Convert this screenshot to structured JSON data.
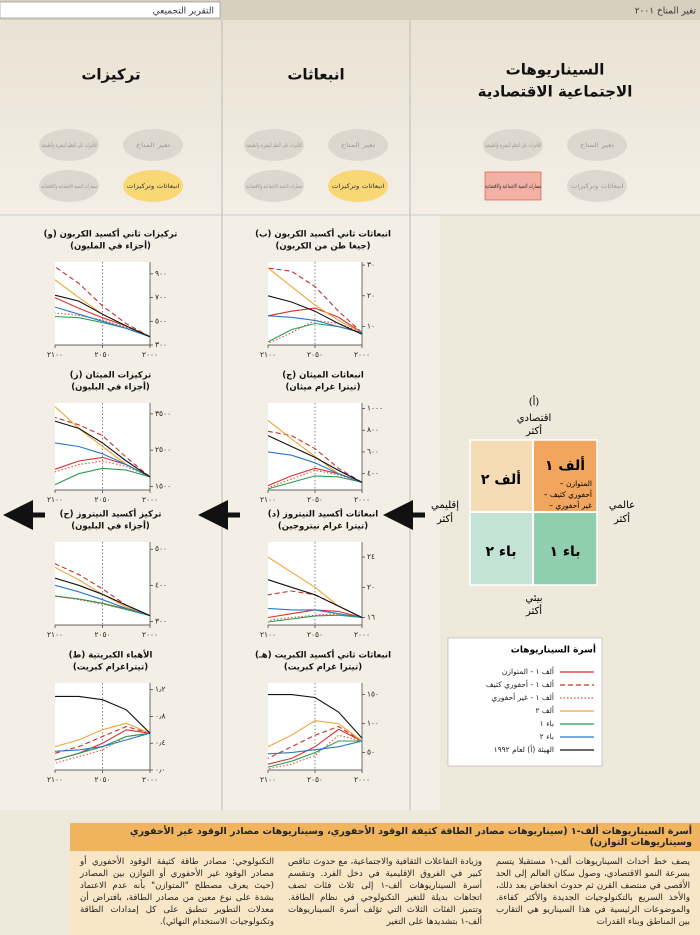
{
  "header": {
    "report_title": "تغير المناخ ٢٠٠١",
    "section": "التقرير التجميعي"
  },
  "columns": [
    {
      "title": [
        "السيناريوهات",
        "الاجتماعية الاقتصادية"
      ]
    },
    {
      "title": [
        "انبعاثات"
      ]
    },
    {
      "title": [
        "تركيزات"
      ]
    }
  ],
  "cycle_labels": [
    "تغير المناخ",
    "التأثيرات على النظم البشرية والطبيعية",
    "مسارات التنمية الاجتماعية والاقتصادية",
    "انبعاثات وتركيزات"
  ],
  "quadrant": {
    "label": "(أ)",
    "top": [
      "اقتصادي",
      "أكثر"
    ],
    "bottom": [
      "بيئي",
      "أكثر"
    ],
    "right": [
      "عالمي",
      "أكثر"
    ],
    "left": [
      "إقليمي",
      "أكثر"
    ],
    "a1": "ألف ١",
    "a2": "ألف ٢",
    "b1": "باء ١",
    "b2": "باء ٢",
    "a1_variants": [
      "– المتوازن",
      "– أحفوري كثيف",
      "– غير أحفوري"
    ]
  },
  "legend": {
    "title": "أسرة السيناريوهات",
    "entries": [
      {
        "name": "ألف ١ - المتوازن",
        "color": "#d8322c",
        "dash": "solid"
      },
      {
        "name": "ألف ١ - أحفوري كثيف",
        "color": "#c8322c",
        "dash": "dashed"
      },
      {
        "name": "ألف ١ - غير أحفوري",
        "color": "#e0503a",
        "dash": "dotted"
      },
      {
        "name": "ألف ٢",
        "color": "#f2a43a",
        "dash": "solid"
      },
      {
        "name": "باء ١",
        "color": "#2c9c50",
        "dash": "solid"
      },
      {
        "name": "باء ٢",
        "color": "#2a78c8",
        "dash": "solid"
      },
      {
        "name": "الهيئة (أ) لعام ١٩٩٢",
        "color": "#111111",
        "dash": "solid"
      }
    ]
  },
  "chart_data": [
    {
      "type": "line",
      "title": "(ب) انبعاثات ثاني أكسيد الكربون",
      "subtitle": "(جيغا طن من الكربون)",
      "x": [
        2000,
        2025,
        2050,
        2075,
        2100
      ],
      "xlim": [
        2000,
        2100
      ],
      "xticks": [
        {
          "value": 2000,
          "label": "٢٠٠٠"
        },
        {
          "value": 2050,
          "label": "٢٠٥٠"
        },
        {
          "value": 2100,
          "label": "٢١٠٠"
        }
      ],
      "ylim": [
        4,
        31
      ],
      "yticks": [
        {
          "value": 10,
          "label": "١٠"
        },
        {
          "value": 20,
          "label": "٢٠"
        },
        {
          "value": 30,
          "label": "٣٠"
        }
      ],
      "series": [
        {
          "values": [
            8,
            13,
            16,
            15,
            13.5
          ]
        },
        {
          "values": [
            8,
            15,
            23,
            28,
            29
          ]
        },
        {
          "values": [
            8,
            11,
            12,
            8,
            4.5
          ]
        },
        {
          "values": [
            8,
            12,
            17,
            23,
            29
          ]
        },
        {
          "values": [
            8,
            10,
            11,
            9,
            5
          ]
        },
        {
          "values": [
            8,
            10,
            12,
            13,
            13.5
          ]
        },
        {
          "values": [
            7.5,
            11,
            15,
            18,
            20
          ]
        }
      ]
    },
    {
      "type": "line",
      "title": "(ج) انبعاثات الميثان",
      "subtitle": "(تيترا غرام ميثان)",
      "x": [
        2000,
        2025,
        2050,
        2075,
        2100
      ],
      "xlim": [
        2000,
        2100
      ],
      "xticks": [
        {
          "value": 2000,
          "label": "٢٠٠٠"
        },
        {
          "value": 2050,
          "label": "٢٠٥٠"
        },
        {
          "value": 2100,
          "label": "٢١٠٠"
        }
      ],
      "ylim": [
        250,
        1050
      ],
      "yticks": [
        {
          "value": 400,
          "label": "٤٠٠"
        },
        {
          "value": 600,
          "label": "٦٠٠"
        },
        {
          "value": 800,
          "label": "٨٠٠"
        },
        {
          "value": 1000,
          "label": "١٠٠٠"
        }
      ],
      "series": [
        {
          "values": [
            320,
            400,
            450,
            380,
            290
          ]
        },
        {
          "values": [
            320,
            450,
            630,
            750,
            790
          ]
        },
        {
          "values": [
            320,
            390,
            430,
            350,
            270
          ]
        },
        {
          "values": [
            320,
            400,
            560,
            720,
            890
          ]
        },
        {
          "values": [
            320,
            370,
            380,
            320,
            260
          ]
        },
        {
          "values": [
            320,
            400,
            500,
            570,
            600
          ]
        },
        {
          "values": [
            320,
            430,
            550,
            650,
            750
          ]
        }
      ]
    },
    {
      "type": "line",
      "title": "(د) انبعاثات أكسيد النيتروز",
      "subtitle": "(تيترا غرام نيتروجين)",
      "x": [
        2000,
        2025,
        2050,
        2075,
        2100
      ],
      "xlim": [
        2000,
        2100
      ],
      "xticks": [
        {
          "value": 2000,
          "label": "٢٠٠٠"
        },
        {
          "value": 2050,
          "label": "٢٠٥٠"
        },
        {
          "value": 2100,
          "label": "٢١٠٠"
        }
      ],
      "ylim": [
        15,
        26
      ],
      "yticks": [
        {
          "value": 16,
          "label": "١٦"
        },
        {
          "value": 20,
          "label": "٢٠"
        },
        {
          "value": 24,
          "label": "٢٤"
        }
      ],
      "series": [
        {
          "values": [
            16,
            16.8,
            17,
            16.5,
            16
          ]
        },
        {
          "values": [
            16,
            17.5,
            19,
            19.5,
            19
          ]
        },
        {
          "values": [
            16,
            16.5,
            16.3,
            16,
            15.6
          ]
        },
        {
          "values": [
            16,
            17.5,
            20,
            22,
            24
          ]
        },
        {
          "values": [
            16,
            16.3,
            16.2,
            15.8,
            15.4
          ]
        },
        {
          "values": [
            16,
            16.5,
            17,
            17,
            17.2
          ]
        },
        {
          "values": [
            16,
            17.5,
            19,
            20,
            21
          ]
        }
      ]
    },
    {
      "type": "line",
      "title": "(هـ) انبعاثات ثاني أكسيد الكبريت",
      "subtitle": "(تيترا غرام كبريت)",
      "x": [
        2000,
        2025,
        2050,
        2075,
        2100
      ],
      "xlim": [
        2000,
        2100
      ],
      "xticks": [
        {
          "value": 2000,
          "label": "٢٠٠٠"
        },
        {
          "value": 2050,
          "label": "٢٠٥٠"
        },
        {
          "value": 2100,
          "label": "٢١٠٠"
        }
      ],
      "ylim": [
        20,
        170
      ],
      "yticks": [
        {
          "value": 50,
          "label": "٥٠"
        },
        {
          "value": 100,
          "label": "١٠٠"
        },
        {
          "value": 150,
          "label": "١٥٠"
        }
      ],
      "series": [
        {
          "values": [
            70,
            90,
            60,
            40,
            30
          ]
        },
        {
          "values": [
            70,
            95,
            80,
            60,
            40
          ]
        },
        {
          "values": [
            70,
            80,
            45,
            30,
            22
          ]
        },
        {
          "values": [
            70,
            100,
            105,
            80,
            60
          ]
        },
        {
          "values": [
            70,
            70,
            50,
            35,
            25
          ]
        },
        {
          "values": [
            70,
            60,
            55,
            50,
            48
          ]
        },
        {
          "values": [
            75,
            120,
            145,
            150,
            150
          ]
        }
      ]
    },
    {
      "type": "line",
      "title": "(و) تركيزات ثاني أكسيد الكربون",
      "subtitle": "(أجزاء في المليون)",
      "x": [
        2000,
        2025,
        2050,
        2075,
        2100
      ],
      "xlim": [
        2000,
        2100
      ],
      "xticks": [
        {
          "value": 2000,
          "label": "٢٠٠٠"
        },
        {
          "value": 2050,
          "label": "٢٠٥٠"
        },
        {
          "value": 2100,
          "label": "٢١٠٠"
        }
      ],
      "ylim": [
        300,
        1000
      ],
      "yticks": [
        {
          "value": 300,
          "label": "٣٠٠"
        },
        {
          "value": 500,
          "label": "٥٠٠"
        },
        {
          "value": 700,
          "label": "٧٠٠"
        },
        {
          "value": 900,
          "label": "٩٠٠"
        }
      ],
      "series": [
        {
          "values": [
            370,
            460,
            530,
            610,
            700
          ]
        },
        {
          "values": [
            370,
            480,
            630,
            820,
            960
          ]
        },
        {
          "values": [
            370,
            450,
            510,
            550,
            570
          ]
        },
        {
          "values": [
            370,
            460,
            560,
            700,
            850
          ]
        },
        {
          "values": [
            370,
            440,
            490,
            530,
            540
          ]
        },
        {
          "values": [
            370,
            440,
            500,
            560,
            620
          ]
        },
        {
          "values": [
            370,
            460,
            560,
            670,
            720
          ]
        }
      ]
    },
    {
      "type": "line",
      "title": "(ز) تركيزات الميثان",
      "subtitle": "(أجزاء في البليون)",
      "x": [
        2000,
        2025,
        2050,
        2075,
        2100
      ],
      "xlim": [
        2000,
        2100
      ],
      "xticks": [
        {
          "value": 2000,
          "label": "٢٠٠٠"
        },
        {
          "value": 2050,
          "label": "٢٠٥٠"
        },
        {
          "value": 2100,
          "label": "٢١٠٠"
        }
      ],
      "ylim": [
        1400,
        3800
      ],
      "yticks": [
        {
          "value": 1500,
          "label": "١٥٠٠"
        },
        {
          "value": 2500,
          "label": "٢٥٠٠"
        },
        {
          "value": 3500,
          "label": "٣٥٠٠"
        }
      ],
      "series": [
        {
          "values": [
            1760,
            2100,
            2300,
            2200,
            1970
          ]
        },
        {
          "values": [
            1760,
            2300,
            2900,
            3200,
            3400
          ]
        },
        {
          "values": [
            1760,
            2050,
            2200,
            2100,
            1900
          ]
        },
        {
          "values": [
            1760,
            2100,
            2600,
            3100,
            3700
          ]
        },
        {
          "values": [
            1760,
            1950,
            2000,
            1850,
            1550
          ]
        },
        {
          "values": [
            1760,
            2100,
            2400,
            2600,
            2700
          ]
        },
        {
          "values": [
            1760,
            2200,
            2700,
            3100,
            3300
          ]
        }
      ]
    },
    {
      "type": "line",
      "title": "(ح) تركيز أكسيد النيتروز",
      "subtitle": "(أجزاء في البليون)",
      "x": [
        2000,
        2025,
        2050,
        2075,
        2100
      ],
      "xlim": [
        2000,
        2100
      ],
      "xticks": [
        {
          "value": 2000,
          "label": "٢٠٠٠"
        },
        {
          "value": 2050,
          "label": "٢٠٥٠"
        },
        {
          "value": 2100,
          "label": "٢١٠٠"
        }
      ],
      "ylim": [
        290,
        520
      ],
      "yticks": [
        {
          "value": 300,
          "label": "٣٠٠"
        },
        {
          "value": 400,
          "label": "٤٠٠"
        },
        {
          "value": 500,
          "label": "٥٠٠"
        }
      ],
      "series": [
        {
          "values": [
            316,
            335,
            350,
            362,
            370
          ]
        },
        {
          "values": [
            316,
            345,
            390,
            430,
            460
          ]
        },
        {
          "values": [
            316,
            333,
            348,
            360,
            370
          ]
        },
        {
          "values": [
            316,
            340,
            375,
            415,
            450
          ]
        },
        {
          "values": [
            316,
            333,
            350,
            362,
            370
          ]
        },
        {
          "values": [
            316,
            336,
            360,
            382,
            400
          ]
        },
        {
          "values": [
            316,
            345,
            375,
            400,
            420
          ]
        }
      ]
    },
    {
      "type": "line",
      "title": "(ط) الأهباء الكبريتية",
      "subtitle": "(تيتراغرام كبريت)",
      "x": [
        2000,
        2025,
        2050,
        2075,
        2100
      ],
      "xlim": [
        2000,
        2100
      ],
      "xticks": [
        {
          "value": 2000,
          "label": "٢٠٠٠"
        },
        {
          "value": 2050,
          "label": "٢٠٥٠"
        },
        {
          "value": 2100,
          "label": "٢١٠٠"
        }
      ],
      "ylim": [
        0,
        1.3
      ],
      "yticks": [
        {
          "value": 0,
          "label": "٠٫٠"
        },
        {
          "value": 0.4,
          "label": "٠٫٤"
        },
        {
          "value": 0.8,
          "label": "٠٫٨"
        },
        {
          "value": 1.2,
          "label": "١٫٢"
        }
      ],
      "series": [
        {
          "values": [
            0.55,
            0.6,
            0.4,
            0.25,
            0.15
          ]
        },
        {
          "values": [
            0.55,
            0.65,
            0.5,
            0.35,
            0.25
          ]
        },
        {
          "values": [
            0.55,
            0.5,
            0.3,
            0.2,
            0.1
          ]
        },
        {
          "values": [
            0.55,
            0.7,
            0.6,
            0.45,
            0.35
          ]
        },
        {
          "values": [
            0.55,
            0.5,
            0.35,
            0.25,
            0.15
          ]
        },
        {
          "values": [
            0.55,
            0.45,
            0.35,
            0.3,
            0.28
          ]
        },
        {
          "values": [
            0.55,
            0.9,
            1.05,
            1.1,
            1.1
          ]
        }
      ]
    }
  ],
  "textbox": {
    "title": "أسرة السيناريوهات ألف-١ (سيناريوهات مصادر الطاقة كثيفة الوقود الأحفوري، وسيناريوهات مصادر الوقود غير الأحفوري وسيناريوهات التوازن)",
    "columns": [
      "يصف خط أحداث السيناريوهات ألف-١ مستقبلا يتسم بسرعة النمو الاقتصادي، وصول سكان العالم إلى الحد الأقصى في منتصف القرن ثم حدوث انخفاض بعد ذلك، والأخذ السريع بالتكنولوجيات الجديدة والأكثر كفاءة. والموضوعات الرئيسية في هذا السيناريو هي التقارب بين المناطق وبناء القدرات",
      "وزيادة التفاعلات الثقافية والاجتماعية، مع حدوث تناقص كبير في الفروق الإقليمية في دخل الفرد. وتنقسم أسرة السيناريوهات ألف-١ إلى ثلاث فئات تصف اتجاهات بديلة للتغير التكنولوجي في نظام الطاقة. وتتميز الفئات الثلاث التي تؤلف أسرة السيناريوهات ألف-١ بتشديدها على التغير",
      "التكنولوجي: مصادر طاقة كثيفة الوقود الأحفوري أو مصادر الوقود غير الأحفوري أو التوازن بين المصادر (حيث يعرف مصطلح \"المتوازن\" بأنه عدم الاعتماد بشدة على نوع معين من مصادر الطاقة، بافتراض أن معدلات التطوير تنطبق على كل إمدادات الطاقة وتكنولوجيات الاستخدام النهائي)."
    ]
  }
}
